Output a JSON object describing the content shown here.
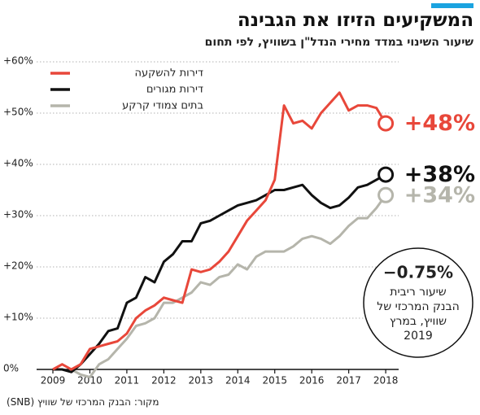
{
  "chart_data": {
    "type": "line",
    "title": "המשקיעים הזיזו את הגבינה",
    "subtitle": "שיעור השינוי במדד מחירי הנדל\"ן בשוויץ, לפי תחום",
    "source": "מקור: הבנק המרכזי של שוויץ (SNB)",
    "x": [
      2009,
      2009.25,
      2009.5,
      2009.75,
      2010,
      2010.25,
      2010.5,
      2010.75,
      2011,
      2011.25,
      2011.5,
      2011.75,
      2012,
      2012.25,
      2012.5,
      2012.75,
      2013,
      2013.25,
      2013.5,
      2013.75,
      2014,
      2014.25,
      2014.5,
      2014.75,
      2015,
      2015.25,
      2015.5,
      2015.75,
      2016,
      2016.25,
      2016.5,
      2016.75,
      2017,
      2017.25,
      2017.5,
      2017.75,
      2018
    ],
    "series": [
      {
        "name": "דירות להשקעה",
        "color": "#e8473a",
        "values": [
          0,
          1,
          0,
          1,
          4,
          4.5,
          5,
          5.5,
          7,
          10,
          11.5,
          12.5,
          14,
          13.5,
          13,
          19.5,
          19,
          19.5,
          21,
          23,
          26,
          29,
          31,
          33,
          37,
          51.5,
          48,
          48.5,
          47,
          50,
          52,
          54,
          50.5,
          51.5,
          51.5,
          51,
          48
        ],
        "value_labels": [
          null,
          null,
          null,
          null,
          null,
          null,
          null,
          null,
          null,
          null,
          null,
          null,
          null,
          null,
          null,
          null,
          null,
          null,
          null,
          null,
          null,
          null,
          null,
          null,
          null,
          null,
          null,
          null,
          null,
          null,
          null,
          null,
          null,
          null,
          null,
          null,
          "+48%"
        ]
      },
      {
        "name": "דירות מגורים",
        "color": "#111111",
        "values": [
          0,
          0,
          -0.5,
          1,
          3,
          5,
          7.5,
          8,
          13,
          14,
          18,
          17,
          21,
          22.5,
          25,
          25,
          28.5,
          29,
          30,
          31,
          32,
          32.5,
          33,
          34,
          35,
          35,
          35.5,
          36,
          34,
          32.5,
          31.5,
          32,
          33.5,
          35.5,
          36,
          37,
          38
        ],
        "value_labels": [
          null,
          null,
          null,
          null,
          null,
          null,
          null,
          null,
          null,
          null,
          null,
          null,
          null,
          null,
          null,
          null,
          null,
          null,
          null,
          null,
          null,
          null,
          null,
          null,
          null,
          null,
          null,
          null,
          null,
          null,
          null,
          null,
          null,
          null,
          null,
          null,
          "+38%"
        ]
      },
      {
        "name": "בתים צמודי קרקע",
        "color": "#b5b5ab",
        "values": [
          null,
          null,
          0,
          -1,
          -1.5,
          1,
          2,
          4,
          6,
          8.5,
          9,
          10,
          13,
          13,
          14,
          15,
          17,
          16.5,
          18,
          18.5,
          20.5,
          19.5,
          22,
          23,
          23,
          23,
          24,
          25.5,
          26,
          25.5,
          24.5,
          26,
          28,
          29.5,
          29.5,
          31.5,
          34
        ],
        "value_labels": [
          null,
          null,
          null,
          null,
          null,
          null,
          null,
          null,
          null,
          null,
          null,
          null,
          null,
          null,
          null,
          null,
          null,
          null,
          null,
          null,
          null,
          null,
          null,
          null,
          null,
          null,
          null,
          null,
          null,
          null,
          null,
          null,
          null,
          null,
          null,
          null,
          "+34%"
        ]
      }
    ],
    "xlim": [
      2008.56,
      2018.35
    ],
    "xticks": [
      2009,
      2010,
      2011,
      2012,
      2013,
      2014,
      2015,
      2016,
      2017,
      2018
    ],
    "ylim": [
      -2,
      62
    ],
    "yticks": [
      {
        "value": 0,
        "label": "0%"
      },
      {
        "value": 10,
        "label": "+10%"
      },
      {
        "value": 20,
        "label": "+20%"
      },
      {
        "value": 30,
        "label": "+30%"
      },
      {
        "value": 40,
        "label": "+40%"
      },
      {
        "value": 50,
        "label": "+50%"
      },
      {
        "value": 60,
        "label": "+60%"
      }
    ],
    "grid": true,
    "legend": "upper left",
    "annotation": {
      "headline": "−0.75%",
      "lines": [
        "שיעור ריבית",
        "הבנק המרכזי של",
        "שוויץ, במרץ",
        "2019"
      ]
    }
  }
}
